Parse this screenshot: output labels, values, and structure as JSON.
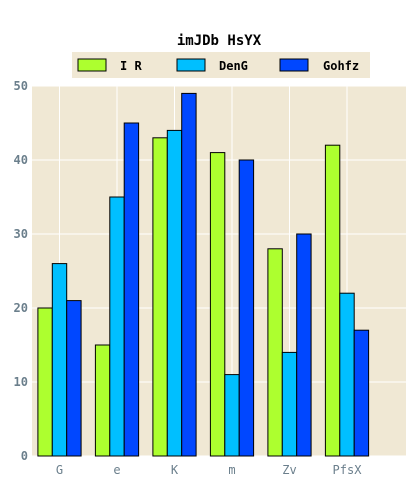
{
  "chart_data": {
    "type": "bar",
    "title": "imJDb HsYX",
    "xlabel": "",
    "ylabel": "",
    "categories": [
      "G",
      "e",
      "K",
      "m",
      "Zv",
      "PfsX"
    ],
    "series": [
      {
        "name": "I R",
        "color": "#adff2f",
        "values": [
          20,
          15,
          43,
          41,
          28,
          42
        ]
      },
      {
        "name": "DenG",
        "color": "#00bfff",
        "values": [
          26,
          35,
          44,
          11,
          14,
          22
        ]
      },
      {
        "name": "Gohfz",
        "color": "#0047ff",
        "values": [
          21,
          45,
          49,
          40,
          30,
          17
        ]
      }
    ],
    "ylim": [
      0,
      50
    ],
    "yticks": [
      0,
      10,
      20,
      30,
      40,
      50
    ],
    "grid": true,
    "legend_position": "top-center",
    "plot_background": "#f0e8d4"
  }
}
